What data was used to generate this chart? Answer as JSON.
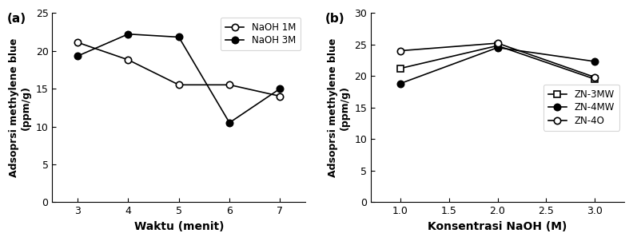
{
  "panel_a": {
    "label": "(a)",
    "x": [
      3,
      4,
      5,
      6,
      7
    ],
    "series": [
      {
        "name": "NaOH 1M",
        "y": [
          21.1,
          18.8,
          15.5,
          15.5,
          14.0
        ],
        "marker": "o",
        "markerfacecolor": "white",
        "markeredgecolor": "black",
        "color": "black",
        "linestyle": "-"
      },
      {
        "name": "NaOH 3M",
        "y": [
          19.3,
          22.2,
          21.8,
          10.5,
          15.0
        ],
        "marker": "o",
        "markerfacecolor": "black",
        "markeredgecolor": "black",
        "color": "black",
        "linestyle": "-"
      }
    ],
    "xlabel": "Waktu (menit)",
    "ylabel": "Adsoprsi methylene blue\n(ppm/g)",
    "ylim": [
      0,
      25
    ],
    "yticks": [
      0,
      5,
      10,
      15,
      20,
      25
    ],
    "xlim": [
      2.5,
      7.5
    ],
    "xticks": [
      3,
      4,
      5,
      6,
      7
    ],
    "legend_loc": "upper right"
  },
  "panel_b": {
    "label": "(b)",
    "x": [
      1.0,
      2.0,
      3.0
    ],
    "series": [
      {
        "name": "ZN-3MW",
        "y": [
          21.2,
          24.8,
          19.5
        ],
        "marker": "s",
        "markerfacecolor": "white",
        "markeredgecolor": "black",
        "color": "black",
        "linestyle": "-"
      },
      {
        "name": "ZN-4MW",
        "y": [
          18.8,
          24.5,
          22.3
        ],
        "marker": "o",
        "markerfacecolor": "black",
        "markeredgecolor": "black",
        "color": "black",
        "linestyle": "-"
      },
      {
        "name": "ZN-4O",
        "y": [
          24.0,
          25.2,
          19.8
        ],
        "marker": "o",
        "markerfacecolor": "white",
        "markeredgecolor": "black",
        "color": "black",
        "linestyle": "-"
      }
    ],
    "xlabel": "Konsentrasi NaOH (M)",
    "ylabel": "Adsoprsi methylene blue\n(ppm/g)",
    "ylim": [
      0,
      30
    ],
    "yticks": [
      0,
      5,
      10,
      15,
      20,
      25,
      30
    ],
    "xlim": [
      0.7,
      3.3
    ],
    "xticks": [
      1.0,
      1.5,
      2.0,
      2.5,
      3.0
    ],
    "legend_loc": "center right"
  }
}
